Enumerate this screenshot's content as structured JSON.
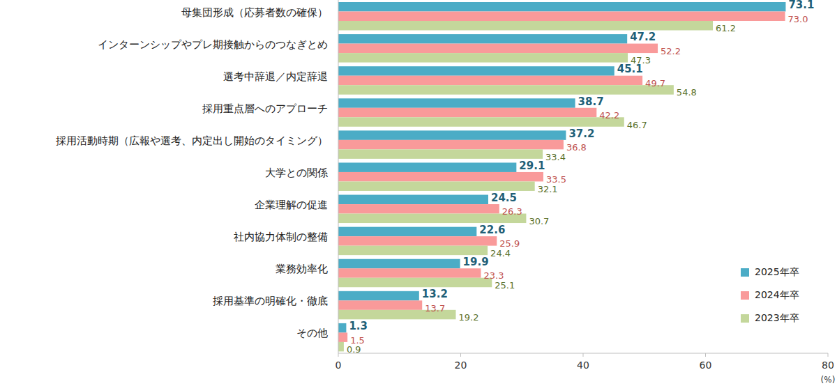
{
  "chart_data": {
    "type": "bar",
    "orientation": "horizontal",
    "x_label": "(%)",
    "categories": [
      "母集団形成（応募者数の確保）",
      "インターンシップやプレ期接触からのつなぎとめ",
      "選考中辞退／内定辞退",
      "採用重点層へのアプローチ",
      "採用活動時期（広報や選考、内定出し開始のタイミング）",
      "大学との関係",
      "企業理解の促進",
      "社内協力体制の整備",
      "業務効率化",
      "採用基準の明確化・徹底",
      "その他"
    ],
    "series": [
      {
        "name": "2025年卒",
        "color": "#4bacc6",
        "values": [
          73.1,
          47.2,
          45.1,
          38.7,
          37.2,
          29.1,
          24.5,
          22.6,
          19.9,
          13.2,
          1.3
        ],
        "value_labels": [
          "73.1",
          "47.2",
          "45.1",
          "38.7",
          "37.2",
          "29.1",
          "24.5",
          "22.6",
          "19.9",
          "13.2",
          "1.3"
        ]
      },
      {
        "name": "2024年卒",
        "color": "#f99a9a",
        "values": [
          73.0,
          52.2,
          49.7,
          42.2,
          36.8,
          33.5,
          26.3,
          25.9,
          23.3,
          13.7,
          1.5
        ],
        "value_labels": [
          "73.0",
          "52.2",
          "49.7",
          "42.2",
          "36.8",
          "33.5",
          "26.3",
          "25.9",
          "23.3",
          "13.7",
          "1.5"
        ]
      },
      {
        "name": "2023年卒",
        "color": "#c4d79b",
        "values": [
          61.2,
          47.3,
          54.8,
          46.7,
          33.4,
          32.1,
          30.7,
          24.4,
          25.1,
          19.2,
          0.9
        ],
        "value_labels": [
          "61.2",
          "47.3",
          "54.8",
          "46.7",
          "33.4",
          "32.1",
          "30.7",
          "24.4",
          "25.1",
          "19.2",
          "0.9"
        ]
      }
    ],
    "xlim": [
      0,
      80
    ],
    "xticks": [
      0,
      20,
      40,
      60,
      80
    ],
    "grid": false,
    "legend": "lower-right",
    "data_labels": true
  }
}
